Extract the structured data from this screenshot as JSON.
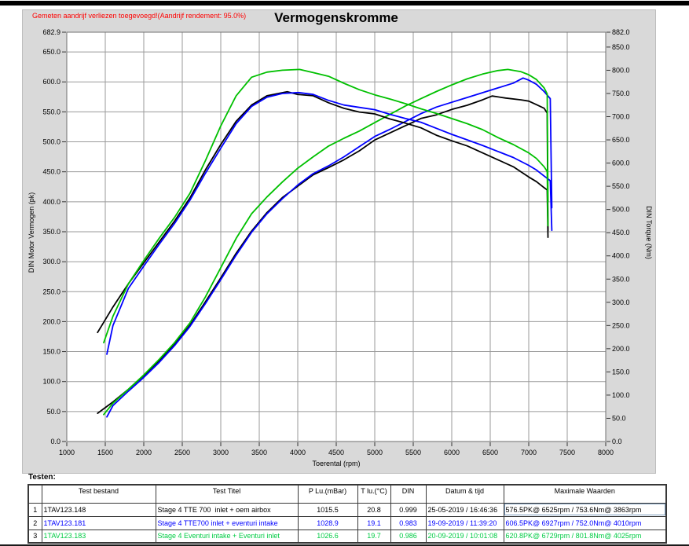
{
  "header": {
    "warning": "Gemeten aandrijf verliezen toegevoegd!(Aandrijf rendement: 95.0%)",
    "warning_color": "#ff0000",
    "title": "Vermogenskromme"
  },
  "chart_data": {
    "type": "line",
    "title": "Vermogenskromme",
    "xlabel": "Toerental (rpm)",
    "ylabel_left": "DIN Motor Vermogen (pk)",
    "ylabel_right": "DIN Torque (Nm)",
    "xlim": [
      1000,
      8000
    ],
    "ylim_left": [
      0,
      682.9
    ],
    "ylim_right": [
      0,
      882.0
    ],
    "grid": true,
    "grid_color": "#9a9a9a",
    "plot_border_color": "#707070",
    "x_ticks": [
      1000,
      1500,
      2000,
      2500,
      3000,
      3500,
      4000,
      4500,
      5000,
      5500,
      6000,
      6500,
      7000,
      7500,
      8000
    ],
    "y_left_ticks": [
      682.9,
      650,
      600,
      550,
      500,
      450,
      400,
      350,
      300,
      250,
      200,
      150,
      100,
      50,
      0
    ],
    "y_right_ticks": [
      882,
      850,
      800,
      750,
      700,
      650,
      600,
      550,
      500,
      450,
      400,
      350,
      300,
      250,
      200,
      150,
      100,
      50,
      0
    ],
    "series": [
      {
        "id": "power-run1",
        "label": "Stage 4 TTE 700 inlet + oem airbox - vermogen (pk)",
        "axis": "left",
        "color": "#000000",
        "points": [
          [
            1400,
            47
          ],
          [
            1600,
            66
          ],
          [
            1800,
            87
          ],
          [
            2000,
            110
          ],
          [
            2200,
            135
          ],
          [
            2400,
            162
          ],
          [
            2600,
            194
          ],
          [
            2800,
            233
          ],
          [
            3000,
            273
          ],
          [
            3200,
            314
          ],
          [
            3400,
            351
          ],
          [
            3600,
            382
          ],
          [
            3800,
            407
          ],
          [
            4000,
            426
          ],
          [
            4200,
            445
          ],
          [
            4400,
            457
          ],
          [
            4600,
            470
          ],
          [
            4800,
            485
          ],
          [
            5000,
            503
          ],
          [
            5200,
            515
          ],
          [
            5400,
            527
          ],
          [
            5600,
            539
          ],
          [
            5800,
            545
          ],
          [
            6000,
            554
          ],
          [
            6200,
            561
          ],
          [
            6400,
            570
          ],
          [
            6525,
            576.5
          ],
          [
            6700,
            573
          ],
          [
            6900,
            570
          ],
          [
            7000,
            568
          ],
          [
            7100,
            562
          ],
          [
            7200,
            556
          ],
          [
            7240,
            548
          ],
          [
            7250,
            352
          ]
        ]
      },
      {
        "id": "power-run2",
        "label": "Stage 4 TTE700 inlet + eventuri intake - vermogen (pk)",
        "axis": "left",
        "color": "#0000ff",
        "points": [
          [
            1520,
            41
          ],
          [
            1600,
            60
          ],
          [
            1800,
            84
          ],
          [
            2000,
            107
          ],
          [
            2200,
            132
          ],
          [
            2400,
            160
          ],
          [
            2600,
            192
          ],
          [
            2800,
            230
          ],
          [
            3000,
            270
          ],
          [
            3200,
            311
          ],
          [
            3400,
            349
          ],
          [
            3600,
            380
          ],
          [
            3800,
            405
          ],
          [
            4000,
            428
          ],
          [
            4200,
            447
          ],
          [
            4400,
            460
          ],
          [
            4600,
            475
          ],
          [
            4800,
            492
          ],
          [
            5000,
            509
          ],
          [
            5200,
            521
          ],
          [
            5400,
            534
          ],
          [
            5600,
            547
          ],
          [
            5800,
            558
          ],
          [
            6000,
            566
          ],
          [
            6200,
            574
          ],
          [
            6400,
            582
          ],
          [
            6600,
            590
          ],
          [
            6800,
            598
          ],
          [
            6927,
            606.5
          ],
          [
            7000,
            603
          ],
          [
            7100,
            596
          ],
          [
            7200,
            584
          ],
          [
            7280,
            572
          ],
          [
            7300,
            390
          ]
        ]
      },
      {
        "id": "power-run3",
        "label": "Stage 4 Eventuri intake + Eventuri inlet - vermogen (pk)",
        "axis": "left",
        "color": "#00c000",
        "points": [
          [
            1480,
            45
          ],
          [
            1600,
            64
          ],
          [
            1800,
            87
          ],
          [
            2000,
            111
          ],
          [
            2200,
            137
          ],
          [
            2400,
            165
          ],
          [
            2600,
            198
          ],
          [
            2800,
            241
          ],
          [
            3000,
            290
          ],
          [
            3200,
            339
          ],
          [
            3400,
            380
          ],
          [
            3600,
            408
          ],
          [
            3800,
            433
          ],
          [
            4000,
            456
          ],
          [
            4200,
            475
          ],
          [
            4400,
            493
          ],
          [
            4600,
            506
          ],
          [
            4800,
            518
          ],
          [
            5000,
            532
          ],
          [
            5200,
            546
          ],
          [
            5400,
            560
          ],
          [
            5600,
            572
          ],
          [
            5800,
            584
          ],
          [
            6000,
            595
          ],
          [
            6200,
            605
          ],
          [
            6400,
            613
          ],
          [
            6600,
            619
          ],
          [
            6729,
            620.8
          ],
          [
            6900,
            617
          ],
          [
            7000,
            612
          ],
          [
            7100,
            604
          ],
          [
            7200,
            590
          ],
          [
            7240,
            580
          ],
          [
            7250,
            400
          ]
        ]
      },
      {
        "id": "torque-run1",
        "label": "Stage 4 TTE 700 inlet + oem airbox - koppel (Nm)",
        "axis": "right",
        "color": "#000000",
        "points": [
          [
            1400,
            235
          ],
          [
            1600,
            290
          ],
          [
            1800,
            340
          ],
          [
            2000,
            385
          ],
          [
            2200,
            430
          ],
          [
            2400,
            475
          ],
          [
            2600,
            525
          ],
          [
            2800,
            585
          ],
          [
            3000,
            640
          ],
          [
            3200,
            690
          ],
          [
            3400,
            725
          ],
          [
            3600,
            745
          ],
          [
            3863,
            753.6
          ],
          [
            4000,
            748
          ],
          [
            4200,
            745
          ],
          [
            4400,
            730
          ],
          [
            4600,
            718
          ],
          [
            4800,
            710
          ],
          [
            5000,
            706
          ],
          [
            5200,
            695
          ],
          [
            5400,
            686
          ],
          [
            5600,
            676
          ],
          [
            5800,
            660
          ],
          [
            6000,
            648
          ],
          [
            6200,
            637
          ],
          [
            6400,
            622
          ],
          [
            6600,
            607
          ],
          [
            6800,
            592
          ],
          [
            7000,
            570
          ],
          [
            7100,
            560
          ],
          [
            7200,
            547
          ],
          [
            7240,
            542
          ],
          [
            7250,
            440
          ]
        ]
      },
      {
        "id": "torque-run2",
        "label": "Stage 4 TTE700 inlet + eventuri intake - koppel (Nm)",
        "axis": "right",
        "color": "#0000ff",
        "points": [
          [
            1520,
            188
          ],
          [
            1600,
            250
          ],
          [
            1800,
            330
          ],
          [
            2000,
            378
          ],
          [
            2200,
            425
          ],
          [
            2400,
            470
          ],
          [
            2600,
            520
          ],
          [
            2800,
            578
          ],
          [
            3000,
            632
          ],
          [
            3200,
            685
          ],
          [
            3400,
            722
          ],
          [
            3600,
            742
          ],
          [
            3800,
            750
          ],
          [
            4010,
            752
          ],
          [
            4200,
            748
          ],
          [
            4400,
            735
          ],
          [
            4600,
            725
          ],
          [
            4800,
            720
          ],
          [
            5000,
            715
          ],
          [
            5200,
            705
          ],
          [
            5400,
            696
          ],
          [
            5600,
            688
          ],
          [
            5800,
            675
          ],
          [
            6000,
            662
          ],
          [
            6200,
            650
          ],
          [
            6400,
            638
          ],
          [
            6600,
            625
          ],
          [
            6800,
            612
          ],
          [
            7000,
            595
          ],
          [
            7100,
            585
          ],
          [
            7200,
            572
          ],
          [
            7280,
            562
          ],
          [
            7300,
            455
          ]
        ]
      },
      {
        "id": "torque-run3",
        "label": "Stage 4 Eventuri intake + Eventuri inlet - koppel (Nm)",
        "axis": "right",
        "color": "#00c000",
        "points": [
          [
            1480,
            213
          ],
          [
            1600,
            270
          ],
          [
            1800,
            340
          ],
          [
            2000,
            390
          ],
          [
            2200,
            438
          ],
          [
            2400,
            483
          ],
          [
            2600,
            535
          ],
          [
            2800,
            605
          ],
          [
            3000,
            680
          ],
          [
            3200,
            745
          ],
          [
            3400,
            785
          ],
          [
            3600,
            796
          ],
          [
            3800,
            800
          ],
          [
            4025,
            801.8
          ],
          [
            4200,
            795
          ],
          [
            4400,
            787
          ],
          [
            4600,
            772
          ],
          [
            4800,
            758
          ],
          [
            5000,
            747
          ],
          [
            5200,
            738
          ],
          [
            5400,
            728
          ],
          [
            5600,
            717
          ],
          [
            5800,
            707
          ],
          [
            6000,
            696
          ],
          [
            6200,
            685
          ],
          [
            6400,
            672
          ],
          [
            6600,
            655
          ],
          [
            6800,
            640
          ],
          [
            7000,
            622
          ],
          [
            7100,
            610
          ],
          [
            7200,
            592
          ],
          [
            7240,
            582
          ],
          [
            7250,
            465
          ]
        ]
      }
    ]
  },
  "table": {
    "label": "Testen:",
    "headers": [
      "",
      "Test bestand",
      "Test Titel",
      "P Lu.(mBar)",
      "T lu.(°C)",
      "DIN",
      "Datum & tijd",
      "Maximale Waarden"
    ],
    "rows": [
      {
        "num": "1",
        "color": "#000000",
        "file": "1TAV123.148",
        "title": "Stage 4 TTE 700  inlet + oem airbox",
        "p_lu": "1015.5",
        "t_lu": "20.8",
        "din": "0.999",
        "datum": "25-05-2019 / 16:46:36",
        "max": "576.5PK@ 6525rpm / 753.6Nm@ 3863rpm",
        "selected_max": true
      },
      {
        "num": "2",
        "color": "#0000ff",
        "file": "1TAV123.181",
        "title": "Stage 4 TTE700 inlet + eventuri intake",
        "p_lu": "1028.9",
        "t_lu": "19.1",
        "din": "0.983",
        "datum": "19-09-2019 / 11:39:20",
        "max": "606.5PK@ 6927rpm / 752.0Nm@ 4010rpm",
        "selected_max": false
      },
      {
        "num": "3",
        "color": "#00cc44",
        "file": "1TAV123.183",
        "title": "Stage 4 Eventuri intake + Eventuri inlet",
        "p_lu": "1026.6",
        "t_lu": "19.7",
        "din": "0.986",
        "datum": "20-09-2019 / 10:01:08",
        "max": "620.8PK@ 6729rpm / 801.8Nm@ 4025rpm",
        "selected_max": false
      }
    ]
  }
}
